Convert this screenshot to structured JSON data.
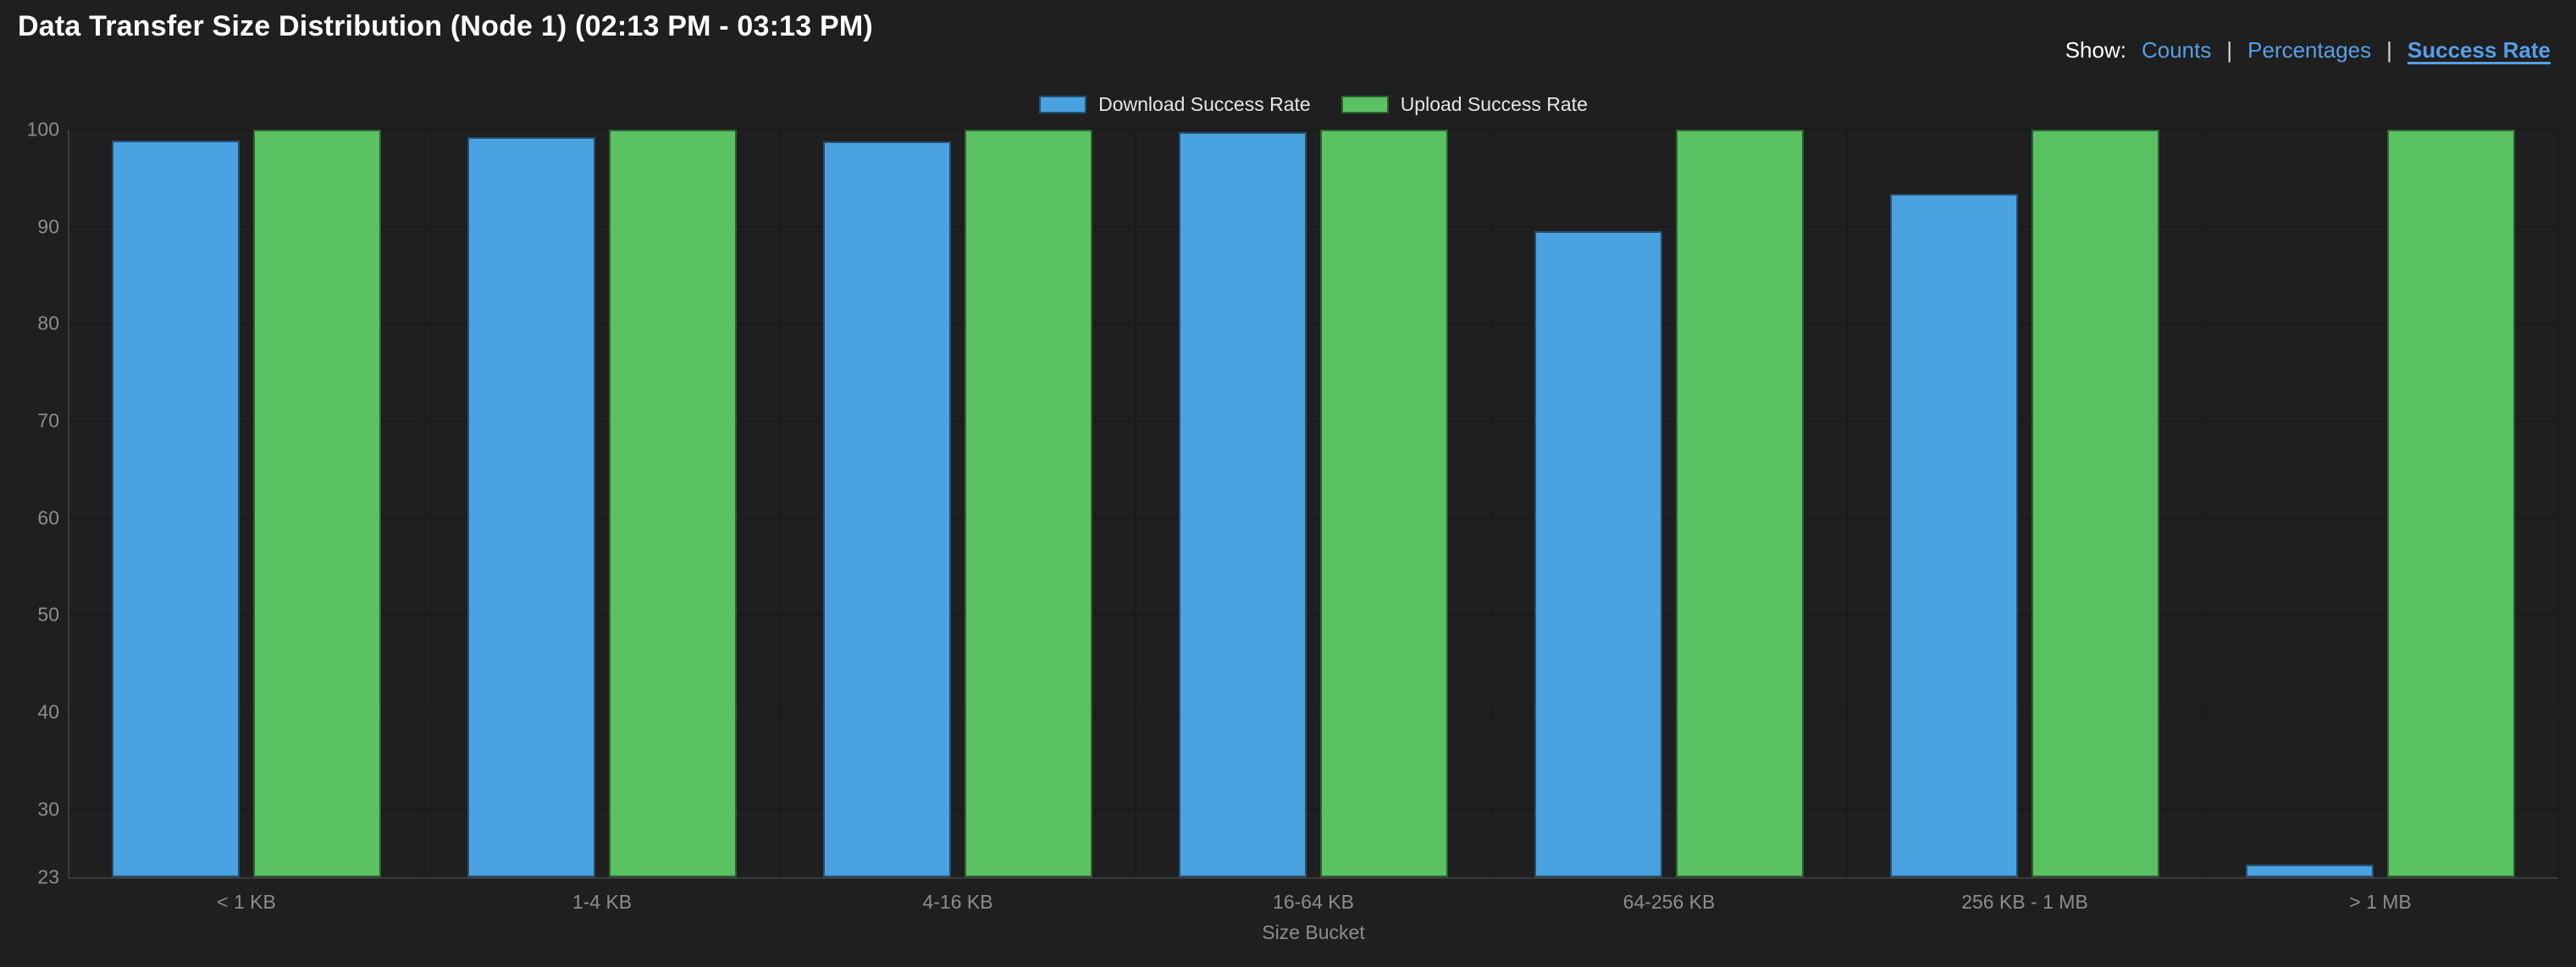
{
  "title": "Data Transfer Size Distribution (Node 1) (02:13 PM - 03:13 PM)",
  "show": {
    "label": "Show:",
    "separator": "|",
    "options": [
      {
        "label": "Counts",
        "active": false
      },
      {
        "label": "Percentages",
        "active": false
      },
      {
        "label": "Success Rate",
        "active": true
      }
    ]
  },
  "colors": {
    "background": "#1f1f1f",
    "download_blue": "#4aa2e0",
    "upload_green": "#5bc262",
    "link_blue": "#559fe8",
    "tick_text": "#8d8d8d",
    "legend_text": "#e6e6e6",
    "gridline": "#1a1a1a",
    "axis_line": "#3a3a3a"
  },
  "chart_data": {
    "type": "bar",
    "title": "Data Transfer Size Distribution (Node 1) (02:13 PM - 03:13 PM)",
    "categories": [
      "< 1 KB",
      "1-4 KB",
      "4-16 KB",
      "16-64 KB",
      "64-256 KB",
      "256 KB - 1 MB",
      "> 1 MB"
    ],
    "series": [
      {
        "name": "Download Success Rate",
        "color": "#4aa2e0",
        "values": [
          98.9,
          99.2,
          98.8,
          99.7,
          89.5,
          93.4,
          24.3
        ]
      },
      {
        "name": "Upload Success Rate",
        "color": "#5bc262",
        "values": [
          100,
          100,
          100,
          100,
          100,
          100,
          100
        ]
      }
    ],
    "xlabel": "Size Bucket",
    "ylabel": "",
    "ylim": [
      23,
      100
    ],
    "yticks": [
      23,
      30,
      40,
      50,
      60,
      70,
      80,
      90,
      100
    ],
    "grid": true,
    "legend_position": "top-center"
  }
}
